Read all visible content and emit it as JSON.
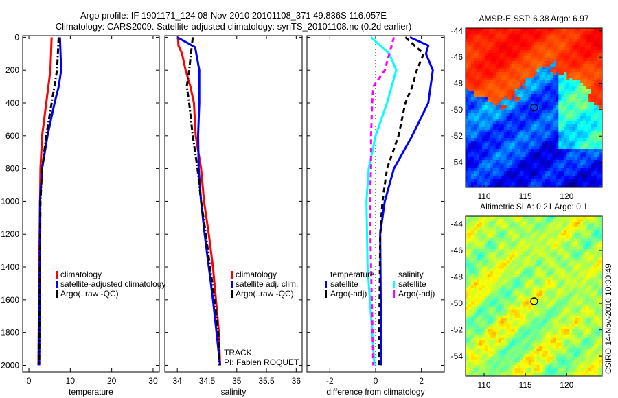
{
  "title_line1": "Argo profile: IF 1901171_124 08-Nov-2010 20101108_371 49.836S 116.057E",
  "title_line2": "Climatology: CARS2009. Satellite-adjusted climatology: synTS_20101108.nc (0.2d earlier)",
  "side_stamp": "CSIRO 14-Nov-2010 10:30:49",
  "colors": {
    "clim": "#ff0000",
    "sat": "#0000ff",
    "argo": "#000000",
    "sal_sat": "#00ffff",
    "sal_argo": "#ff00ff"
  },
  "chart_data": [
    {
      "type": "line",
      "xlabel": "temperature",
      "ylabel": "",
      "xlim": [
        -1.5,
        31.5
      ],
      "ylim": [
        2040,
        -10
      ],
      "xticks": [
        0,
        10,
        20,
        30
      ],
      "yticks": [
        0,
        200,
        400,
        600,
        800,
        1000,
        1200,
        1400,
        1600,
        1800,
        2000
      ],
      "legend": [
        "climatology",
        "satellite-adjusted climatology",
        "Argo(..raw -QC)"
      ],
      "series": [
        {
          "name": "climatology",
          "color": "#ff0000",
          "dash": "",
          "depth": [
            0,
            200,
            400,
            600,
            800,
            1000,
            1400,
            2000
          ],
          "values": [
            5.5,
            5.2,
            4.2,
            3.2,
            2.8,
            2.7,
            2.5,
            2.3
          ]
        },
        {
          "name": "satellite-adjusted climatology",
          "color": "#0000ff",
          "dash": "",
          "depth": [
            0,
            200,
            300,
            400,
            600,
            800,
            1000,
            2000
          ],
          "values": [
            7.5,
            7.8,
            7.2,
            6.2,
            4.5,
            3.2,
            2.7,
            2.5
          ]
        },
        {
          "name": "Argo(..raw -QC)",
          "color": "#000000",
          "dash": "8 3 2 3",
          "depth": [
            0,
            200,
            400,
            600,
            800,
            1000,
            2000
          ],
          "values": [
            7.2,
            6.8,
            5.5,
            4.2,
            3.2,
            2.8,
            2.5
          ]
        }
      ]
    },
    {
      "type": "line",
      "xlabel": "salinity",
      "xlim": [
        33.79,
        36.1
      ],
      "ylim": [
        2040,
        -10
      ],
      "xticks": [
        34,
        34.5,
        35,
        35.5,
        36
      ],
      "legend": [
        "climatology",
        "satellite adj. clim.",
        "Argo(..raw -QC)"
      ],
      "annotations": [
        "TRACK",
        "PI: Fabien ROQUET"
      ],
      "series": [
        {
          "name": "climatology",
          "color": "#ff0000",
          "dash": "",
          "depth": [
            0,
            50,
            100,
            200,
            300,
            400,
            600,
            800,
            1000,
            1200,
            1400,
            1600,
            1800,
            2000
          ],
          "values": [
            34.01,
            34.02,
            34.08,
            34.14,
            34.22,
            34.28,
            34.31,
            34.4,
            34.45,
            34.53,
            34.6,
            34.65,
            34.7,
            34.72
          ]
        },
        {
          "name": "satellite adj. clim.",
          "color": "#0000ff",
          "dash": "",
          "depth": [
            0,
            60,
            200,
            400,
            600,
            800,
            1000,
            1200,
            1400,
            1600,
            1800,
            2000
          ],
          "values": [
            34.0,
            34.3,
            34.37,
            34.37,
            34.35,
            34.36,
            34.4,
            34.46,
            34.53,
            34.6,
            34.66,
            34.72
          ]
        },
        {
          "name": "Argo(..raw -QC)",
          "color": "#000000",
          "dash": "8 3 2 3",
          "depth": [
            0,
            200,
            300,
            400,
            600,
            800,
            1000,
            1200,
            1400,
            1600,
            1800,
            2000
          ],
          "values": [
            34.26,
            34.2,
            34.16,
            34.2,
            34.26,
            34.34,
            34.4,
            34.48,
            34.55,
            34.63,
            34.69,
            34.71
          ]
        }
      ]
    },
    {
      "type": "line",
      "xlabel": "difference from climatology",
      "xlim": [
        -3,
        3
      ],
      "ylim": [
        2040,
        -10
      ],
      "xticks": [
        -2,
        0,
        2
      ],
      "legend_headers": [
        "temperature",
        "salinity"
      ],
      "legend": [
        "satellite",
        "Argo(-adj)",
        "satellite",
        "Argo(-adj)"
      ],
      "series": [
        {
          "name": "temperature satellite",
          "color": "#0000ff",
          "dash": "",
          "depth": [
            0,
            50,
            100,
            200,
            300,
            400,
            600,
            800,
            1000,
            1200,
            2000
          ],
          "values": [
            1.5,
            2.3,
            2.2,
            2.5,
            2.4,
            2.3,
            1.6,
            0.8,
            0.4,
            0.2,
            0.25
          ]
        },
        {
          "name": "temperature Argo(-adj)",
          "color": "#000000",
          "dash": "7 5",
          "depth": [
            0,
            100,
            200,
            300,
            400,
            600,
            800,
            1000,
            1200,
            2000
          ],
          "values": [
            1.3,
            2.1,
            1.8,
            1.6,
            1.3,
            1.0,
            0.5,
            0.3,
            0.2,
            0.15
          ]
        },
        {
          "name": "salinity satellite",
          "color": "#00ffff",
          "dash": "",
          "depth": [
            0,
            100,
            200,
            300,
            400,
            600,
            800,
            1000,
            1400,
            2000
          ],
          "values": [
            -0.2,
            0.6,
            0.9,
            0.7,
            0.5,
            0.0,
            -0.3,
            -0.4,
            -0.35,
            -0.05
          ]
        },
        {
          "name": "salinity Argo(-adj)",
          "color": "#ff00ff",
          "dash": "7 5",
          "depth": [
            0,
            100,
            200,
            300,
            400,
            600,
            800,
            1000,
            1400,
            2000
          ],
          "values": [
            0.8,
            0.6,
            0.4,
            -0.1,
            -0.15,
            -0.2,
            -0.2,
            -0.25,
            -0.2,
            -0.1
          ]
        }
      ]
    },
    {
      "type": "heatmap",
      "title": "AMSR-E SST: 6.38 Argo: 6.97",
      "xlim": [
        107.75,
        124.3
      ],
      "ylim": [
        -43.8,
        -55.9
      ],
      "xticks": [
        110,
        115,
        120
      ],
      "yticks": [
        -44,
        -46,
        -48,
        -50,
        -52,
        -54
      ],
      "marker": {
        "lon": 116.057,
        "lat": -49.836
      }
    },
    {
      "type": "heatmap",
      "title": "Altimetric SLA: 0.21 Argo: 0.1",
      "xlim": [
        107.75,
        124.3
      ],
      "ylim": [
        -43.4,
        -55.5
      ],
      "xticks": [
        110,
        115,
        120
      ],
      "yticks": [
        -44,
        -46,
        -48,
        -50,
        -52,
        -54
      ],
      "marker": {
        "lon": 116.057,
        "lat": -49.836
      }
    }
  ]
}
